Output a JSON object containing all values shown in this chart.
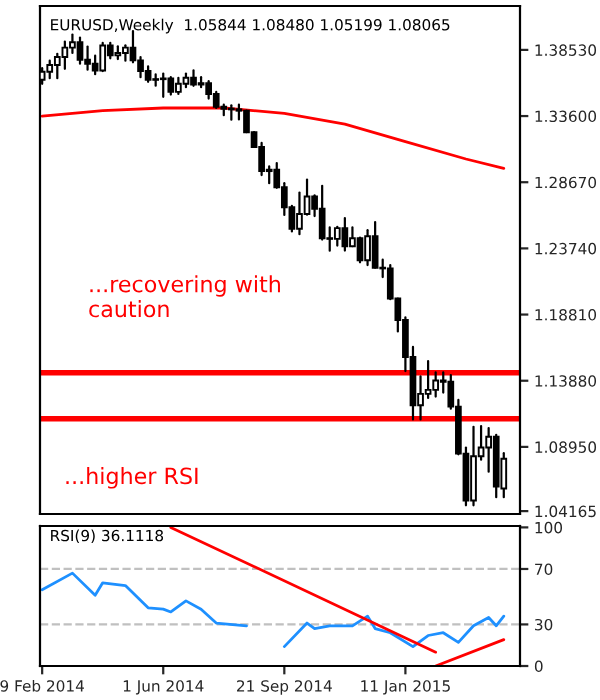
{
  "chart_data": [
    {
      "type": "candlestick",
      "title": "EURUSD,Weekly  1.05844 1.08480 1.05199 1.08065",
      "x": [
        "2014-02-09",
        "2014-02-16",
        "2014-02-23",
        "2014-03-02",
        "2014-03-09",
        "2014-03-16",
        "2014-03-23",
        "2014-03-30",
        "2014-04-06",
        "2014-04-13",
        "2014-04-20",
        "2014-04-27",
        "2014-05-04",
        "2014-05-11",
        "2014-05-18",
        "2014-05-25",
        "2014-06-01",
        "2014-06-08",
        "2014-06-15",
        "2014-06-22",
        "2014-06-29",
        "2014-07-06",
        "2014-07-13",
        "2014-07-20",
        "2014-07-27",
        "2014-08-03",
        "2014-08-10",
        "2014-08-17",
        "2014-08-24",
        "2014-08-31",
        "2014-09-07",
        "2014-09-14",
        "2014-09-21",
        "2014-09-28",
        "2014-10-05",
        "2014-10-12",
        "2014-10-19",
        "2014-10-26",
        "2014-11-02",
        "2014-11-09",
        "2014-11-16",
        "2014-11-23",
        "2014-11-30",
        "2014-12-07",
        "2014-12-14",
        "2014-12-21",
        "2014-12-28",
        "2015-01-04",
        "2015-01-11",
        "2015-01-18",
        "2015-01-25",
        "2015-02-01",
        "2015-02-08",
        "2015-02-15",
        "2015-02-22",
        "2015-03-01",
        "2015-03-08",
        "2015-03-15",
        "2015-03-22",
        "2015-03-29",
        "2015-04-05",
        "2015-04-12"
      ],
      "ohlc": [
        [
          1.363,
          1.3717,
          1.36,
          1.369
        ],
        [
          1.369,
          1.3773,
          1.3642,
          1.374
        ],
        [
          1.374,
          1.3824,
          1.3642,
          1.38
        ],
        [
          1.38,
          1.3915,
          1.3712,
          1.387
        ],
        [
          1.387,
          1.3967,
          1.383,
          1.391
        ],
        [
          1.391,
          1.3945,
          1.375,
          1.378
        ],
        [
          1.378,
          1.3878,
          1.3705,
          1.375
        ],
        [
          1.375,
          1.381,
          1.3672,
          1.37
        ],
        [
          1.37,
          1.3905,
          1.3695,
          1.3885
        ],
        [
          1.3885,
          1.3906,
          1.379,
          1.3812
        ],
        [
          1.3812,
          1.388,
          1.3785,
          1.383
        ],
        [
          1.383,
          1.3887,
          1.3772,
          1.387
        ],
        [
          1.387,
          1.3993,
          1.376,
          1.3775
        ],
        [
          1.3775,
          1.38,
          1.365,
          1.3695
        ],
        [
          1.3695,
          1.373,
          1.3615,
          1.363
        ],
        [
          1.363,
          1.367,
          1.3586,
          1.3635
        ],
        [
          1.3635,
          1.3677,
          1.3503,
          1.364
        ],
        [
          1.364,
          1.365,
          1.352,
          1.354
        ],
        [
          1.354,
          1.3645,
          1.3525,
          1.36
        ],
        [
          1.36,
          1.3677,
          1.3575,
          1.3645
        ],
        [
          1.3645,
          1.37,
          1.3585,
          1.3595
        ],
        [
          1.3595,
          1.365,
          1.3575,
          1.3605
        ],
        [
          1.3605,
          1.362,
          1.349,
          1.3525
        ],
        [
          1.3525,
          1.354,
          1.342,
          1.343
        ],
        [
          1.343,
          1.3445,
          1.3366,
          1.3415
        ],
        [
          1.3415,
          1.344,
          1.3333,
          1.341
        ],
        [
          1.341,
          1.3445,
          1.3335,
          1.34
        ],
        [
          1.34,
          1.34,
          1.324,
          1.324
        ],
        [
          1.324,
          1.324,
          1.313,
          1.313
        ],
        [
          1.313,
          1.316,
          1.292,
          1.295
        ],
        [
          1.295,
          1.2985,
          1.286,
          1.296
        ],
        [
          1.296,
          1.301,
          1.2825,
          1.283
        ],
        [
          1.283,
          1.286,
          1.2623,
          1.268
        ],
        [
          1.268,
          1.269,
          1.25,
          1.252
        ],
        [
          1.252,
          1.279,
          1.248,
          1.263
        ],
        [
          1.263,
          1.2887,
          1.2625,
          1.276
        ],
        [
          1.276,
          1.277,
          1.2615,
          1.267
        ],
        [
          1.267,
          1.284,
          1.244,
          1.245
        ],
        [
          1.245,
          1.253,
          1.2357,
          1.2445
        ],
        [
          1.2445,
          1.2535,
          1.2395,
          1.2525
        ],
        [
          1.2525,
          1.26,
          1.2358,
          1.239
        ],
        [
          1.239,
          1.253,
          1.239,
          1.245
        ],
        [
          1.245,
          1.2455,
          1.227,
          1.2285
        ],
        [
          1.2285,
          1.251,
          1.225,
          1.2465
        ],
        [
          1.2465,
          1.257,
          1.223,
          1.223
        ],
        [
          1.223,
          1.229,
          1.216,
          1.2225
        ],
        [
          1.2225,
          1.225,
          1.1995,
          1.2
        ],
        [
          1.2,
          1.2,
          1.1755,
          1.184
        ],
        [
          1.184,
          1.186,
          1.146,
          1.1565
        ],
        [
          1.1565,
          1.164,
          1.11,
          1.1205
        ],
        [
          1.1205,
          1.142,
          1.11,
          1.129
        ],
        [
          1.129,
          1.1535,
          1.126,
          1.132
        ],
        [
          1.132,
          1.145,
          1.127,
          1.139
        ],
        [
          1.139,
          1.145,
          1.13,
          1.138
        ],
        [
          1.138,
          1.143,
          1.118,
          1.1195
        ],
        [
          1.1195,
          1.1245,
          1.084,
          1.0845
        ],
        [
          1.0845,
          1.089,
          1.046,
          1.0495
        ],
        [
          1.0495,
          1.1045,
          1.046,
          1.0825
        ],
        [
          1.0825,
          1.105,
          1.08,
          1.089
        ],
        [
          1.089,
          1.1035,
          1.071,
          1.097
        ],
        [
          1.097,
          1.0985,
          1.052,
          1.06
        ],
        [
          1.05844,
          1.0848,
          1.05199,
          1.08065
        ]
      ],
      "series": [
        {
          "type": "line",
          "color": "#ff0000",
          "x": [
            "2014-02-09",
            "2014-04-06",
            "2014-06-01",
            "2014-07-27",
            "2014-09-21",
            "2014-11-16",
            "2015-01-11",
            "2015-03-08",
            "2015-04-12"
          ],
          "values": [
            1.336,
            1.34,
            1.342,
            1.342,
            1.338,
            1.33,
            1.317,
            1.304,
            1.297
          ]
        }
      ],
      "ref_lines": [
        {
          "axis": "y",
          "value": 1.1448,
          "color": "#ff0000"
        },
        {
          "axis": "y",
          "value": 1.1104,
          "color": "#ff0000"
        }
      ],
      "annotations": [
        "...recovering with\ncaution",
        "...higher RSI"
      ],
      "xlim": [
        "2014-02-07",
        "2015-04-27"
      ],
      "ylim": [
        1.0395,
        1.418
      ],
      "yticks": [
        {
          "value": 1.04165,
          "label": "1.04165"
        },
        {
          "value": 1.0895,
          "label": "1.08950"
        },
        {
          "value": 1.1388,
          "label": "1.13880"
        },
        {
          "value": 1.1881,
          "label": "1.18810"
        },
        {
          "value": 1.2374,
          "label": "1.23740"
        },
        {
          "value": 1.2867,
          "label": "1.28670"
        },
        {
          "value": 1.336,
          "label": "1.33600"
        },
        {
          "value": 1.3853,
          "label": "1.38530"
        }
      ],
      "tick_labels": "y",
      "grid": false,
      "legend": false
    },
    {
      "type": "line",
      "title": "RSI(9) 36.1118",
      "series": [
        {
          "color": "#1e90ff",
          "x": [
            "2014-02-09",
            "2014-03-09",
            "2014-03-30",
            "2014-04-06",
            "2014-04-27",
            "2014-05-18",
            "2014-06-01",
            "2014-06-08",
            "2014-06-22",
            "2014-07-06",
            "2014-07-20",
            "2014-08-17",
            "2014-08-24",
            "2014-09-21",
            "2014-10-12",
            "2014-10-19",
            "2014-11-02",
            "2014-11-23",
            "2014-12-07",
            "2014-12-14",
            "2014-12-28",
            "2015-01-18",
            "2015-02-01",
            "2015-02-15",
            "2015-03-01",
            "2015-03-15",
            "2015-03-29",
            "2015-04-05",
            "2015-04-12"
          ],
          "values": [
            55,
            67,
            51,
            60,
            58,
            42,
            41,
            39,
            47,
            41,
            31,
            29,
            null,
            14,
            31,
            27,
            29,
            29,
            36,
            27,
            24,
            14,
            22,
            24,
            17,
            29,
            35,
            29,
            36
          ]
        },
        {
          "color": "#ff0000",
          "x": [
            "2014-06-08",
            "2015-02-08"
          ],
          "values": [
            100,
            10
          ]
        },
        {
          "color": "#ff0000",
          "x": [
            "2015-02-08",
            "2015-04-12"
          ],
          "values": [
            0,
            19
          ]
        }
      ],
      "ref_lines": [
        {
          "axis": "y",
          "value": 30,
          "color": "#c0c0c0",
          "line_style": "dashed"
        },
        {
          "axis": "y",
          "value": 70,
          "color": "#c0c0c0",
          "line_style": "dashed"
        }
      ],
      "xlim": [
        "2014-02-07",
        "2015-04-27"
      ],
      "xticks": [
        {
          "value": "2014-02-09",
          "label": "9 Feb 2014"
        },
        {
          "value": "2014-06-01",
          "label": "1 Jun 2014"
        },
        {
          "value": "2014-09-21",
          "label": "21 Sep 2014"
        },
        {
          "value": "2015-01-11",
          "label": "11 Jan 2015"
        }
      ],
      "ylim": [
        0,
        101
      ],
      "yticks": [
        0,
        30,
        70,
        100
      ],
      "grid": false,
      "legend": false
    }
  ]
}
